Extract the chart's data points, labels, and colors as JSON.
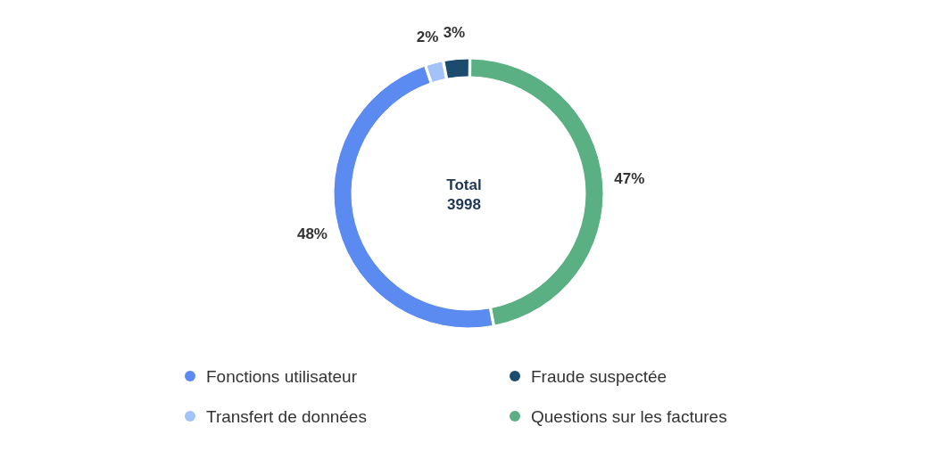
{
  "chart_data": {
    "type": "donut",
    "categories": [
      "Fonctions utilisateur",
      "Transfert de données",
      "Fraude suspectée",
      "Questions sur les factures"
    ],
    "values": [
      48,
      2,
      3,
      47
    ],
    "colors": [
      "#5b8af0",
      "#a3c2f7",
      "#1b4b6e",
      "#5aaf83"
    ],
    "value_labels": [
      "48%",
      "2%",
      "3%",
      "47%"
    ],
    "legend": "bottom",
    "annotations": [
      "Total",
      "3998"
    ]
  }
}
